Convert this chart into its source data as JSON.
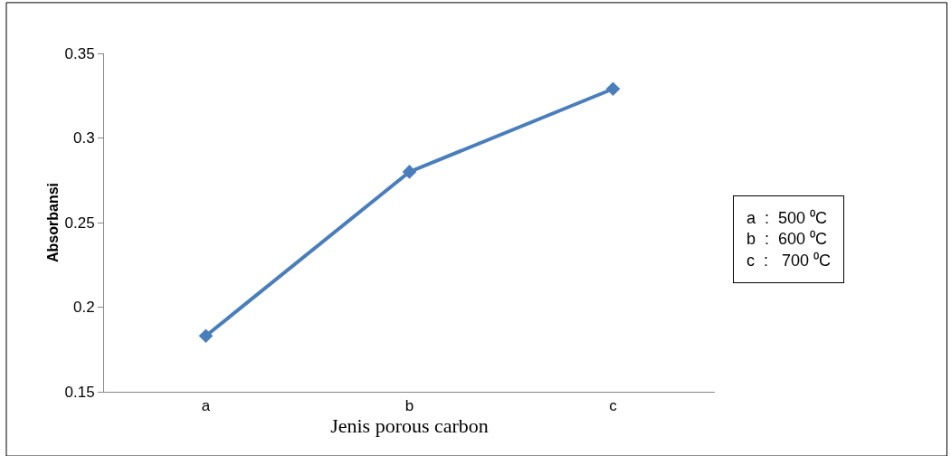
{
  "chart_data": {
    "type": "line",
    "xlabel": "Jenis porous carbon",
    "ylabel": "Absorbansi",
    "categories": [
      "a",
      "b",
      "c"
    ],
    "series": [
      {
        "color": "#4a7ebb",
        "values": [
          0.183,
          0.28,
          0.329
        ]
      }
    ],
    "ylim": [
      0.15,
      0.35
    ],
    "yticks": [
      0.15,
      0.2,
      0.25,
      0.3,
      0.35
    ],
    "legend": false,
    "marker": "diamond",
    "line_style": "solid",
    "annotations": [
      "a  :  500 ⁰C",
      "b  :  600 ⁰C",
      "c  :   700 ⁰C"
    ]
  }
}
